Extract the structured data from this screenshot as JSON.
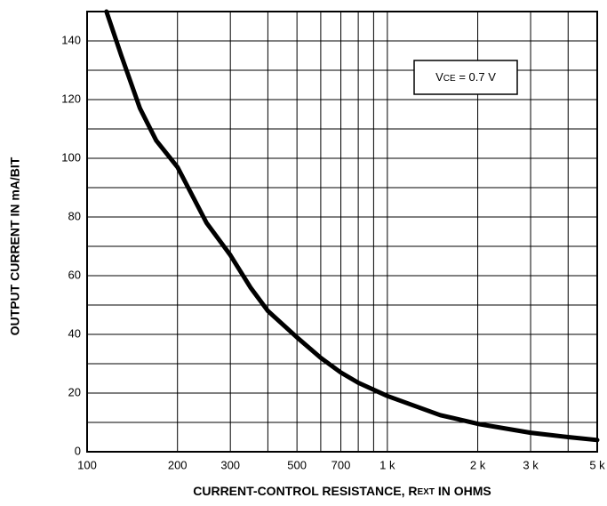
{
  "chart_data": {
    "type": "line",
    "ylabel": "OUTPUT CURRENT IN mA/BIT",
    "xlabel": {
      "main": "CURRENT-CONTROL RESISTANCE, R",
      "sub": "EXT",
      "rest": " IN OHMS"
    },
    "annotation": {
      "main": "V",
      "sub": "CE",
      "rest": " = 0.7 V"
    },
    "x": [
      116,
      130,
      150,
      170,
      200,
      250,
      300,
      350,
      400,
      500,
      600,
      700,
      800,
      1000,
      1500,
      2000,
      3000,
      4000,
      5000
    ],
    "values": [
      150,
      135,
      117,
      106,
      97,
      78,
      67,
      56,
      48,
      39,
      32,
      27,
      23.5,
      19,
      12.5,
      9.5,
      6.5,
      5,
      4
    ],
    "color": "#000000",
    "xscale": "log",
    "xlim": [
      100,
      5000
    ],
    "xticks": [
      100,
      200,
      300,
      500,
      700,
      {
        "value": 1000,
        "label": "1 k"
      },
      {
        "value": 2000,
        "label": "2 k"
      },
      {
        "value": 3000,
        "label": "3 k"
      },
      {
        "value": 5000,
        "label": "5 k"
      }
    ],
    "minor_xticks": [
      400,
      600,
      800,
      900,
      4000
    ],
    "ylim": [
      0,
      150
    ],
    "yticks": [
      0,
      20,
      40,
      60,
      80,
      100,
      120,
      140
    ],
    "minor_yticks": [
      10,
      30,
      50,
      70,
      90,
      110,
      130,
      150
    ],
    "grid": true
  }
}
